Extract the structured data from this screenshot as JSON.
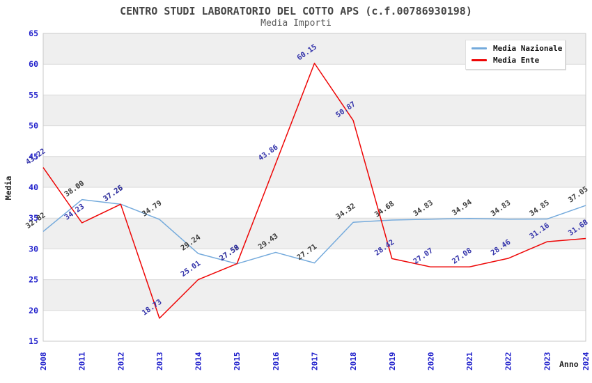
{
  "header": {
    "title": "CENTRO STUDI LABORATORIO DEL COTTO APS (c.f.00786930198)",
    "subtitle": "Media Importi"
  },
  "legend": {
    "items": [
      {
        "label": "Media Nazionale"
      },
      {
        "label": "Media Ente"
      }
    ]
  },
  "axes": {
    "y_label": "Media",
    "x_label": "Anno",
    "tick_color": "#2222cc",
    "y_ticks": [
      65,
      60,
      55,
      50,
      45,
      40,
      35,
      30,
      25,
      20,
      15
    ]
  },
  "chart_data": {
    "type": "line",
    "title": "CENTRO STUDI LABORATORIO DEL COTTO APS (c.f.00786930198)",
    "subtitle": "Media Importi",
    "xlabel": "Anno",
    "ylabel": "Media",
    "ylim": [
      15,
      65
    ],
    "y_tick_step": 5,
    "grid": "horizontal",
    "background_bands": true,
    "band_color": "#efefef",
    "grid_color": "#d9d9d9",
    "border_color": "#c9c9c9",
    "legend_position": "top-right",
    "categories": [
      "2008",
      "2011",
      "2012",
      "2013",
      "2014",
      "2015",
      "2016",
      "2017",
      "2018",
      "2019",
      "2020",
      "2021",
      "2022",
      "2023",
      "2024"
    ],
    "series": [
      {
        "name": "Media Nazionale",
        "color": "#74aadc",
        "label_color": "#3c3c3c",
        "values": [
          32.82,
          38.0,
          37.26,
          34.79,
          29.24,
          27.58,
          29.43,
          27.71,
          34.32,
          34.68,
          34.83,
          34.94,
          34.83,
          34.85,
          37.05
        ]
      },
      {
        "name": "Media Ente",
        "color": "#ee0505",
        "label_color": "#3333aa",
        "values": [
          43.22,
          34.23,
          37.25,
          18.73,
          25.01,
          27.59,
          43.86,
          60.15,
          50.87,
          28.42,
          27.07,
          27.08,
          28.46,
          31.16,
          31.68
        ]
      }
    ]
  }
}
